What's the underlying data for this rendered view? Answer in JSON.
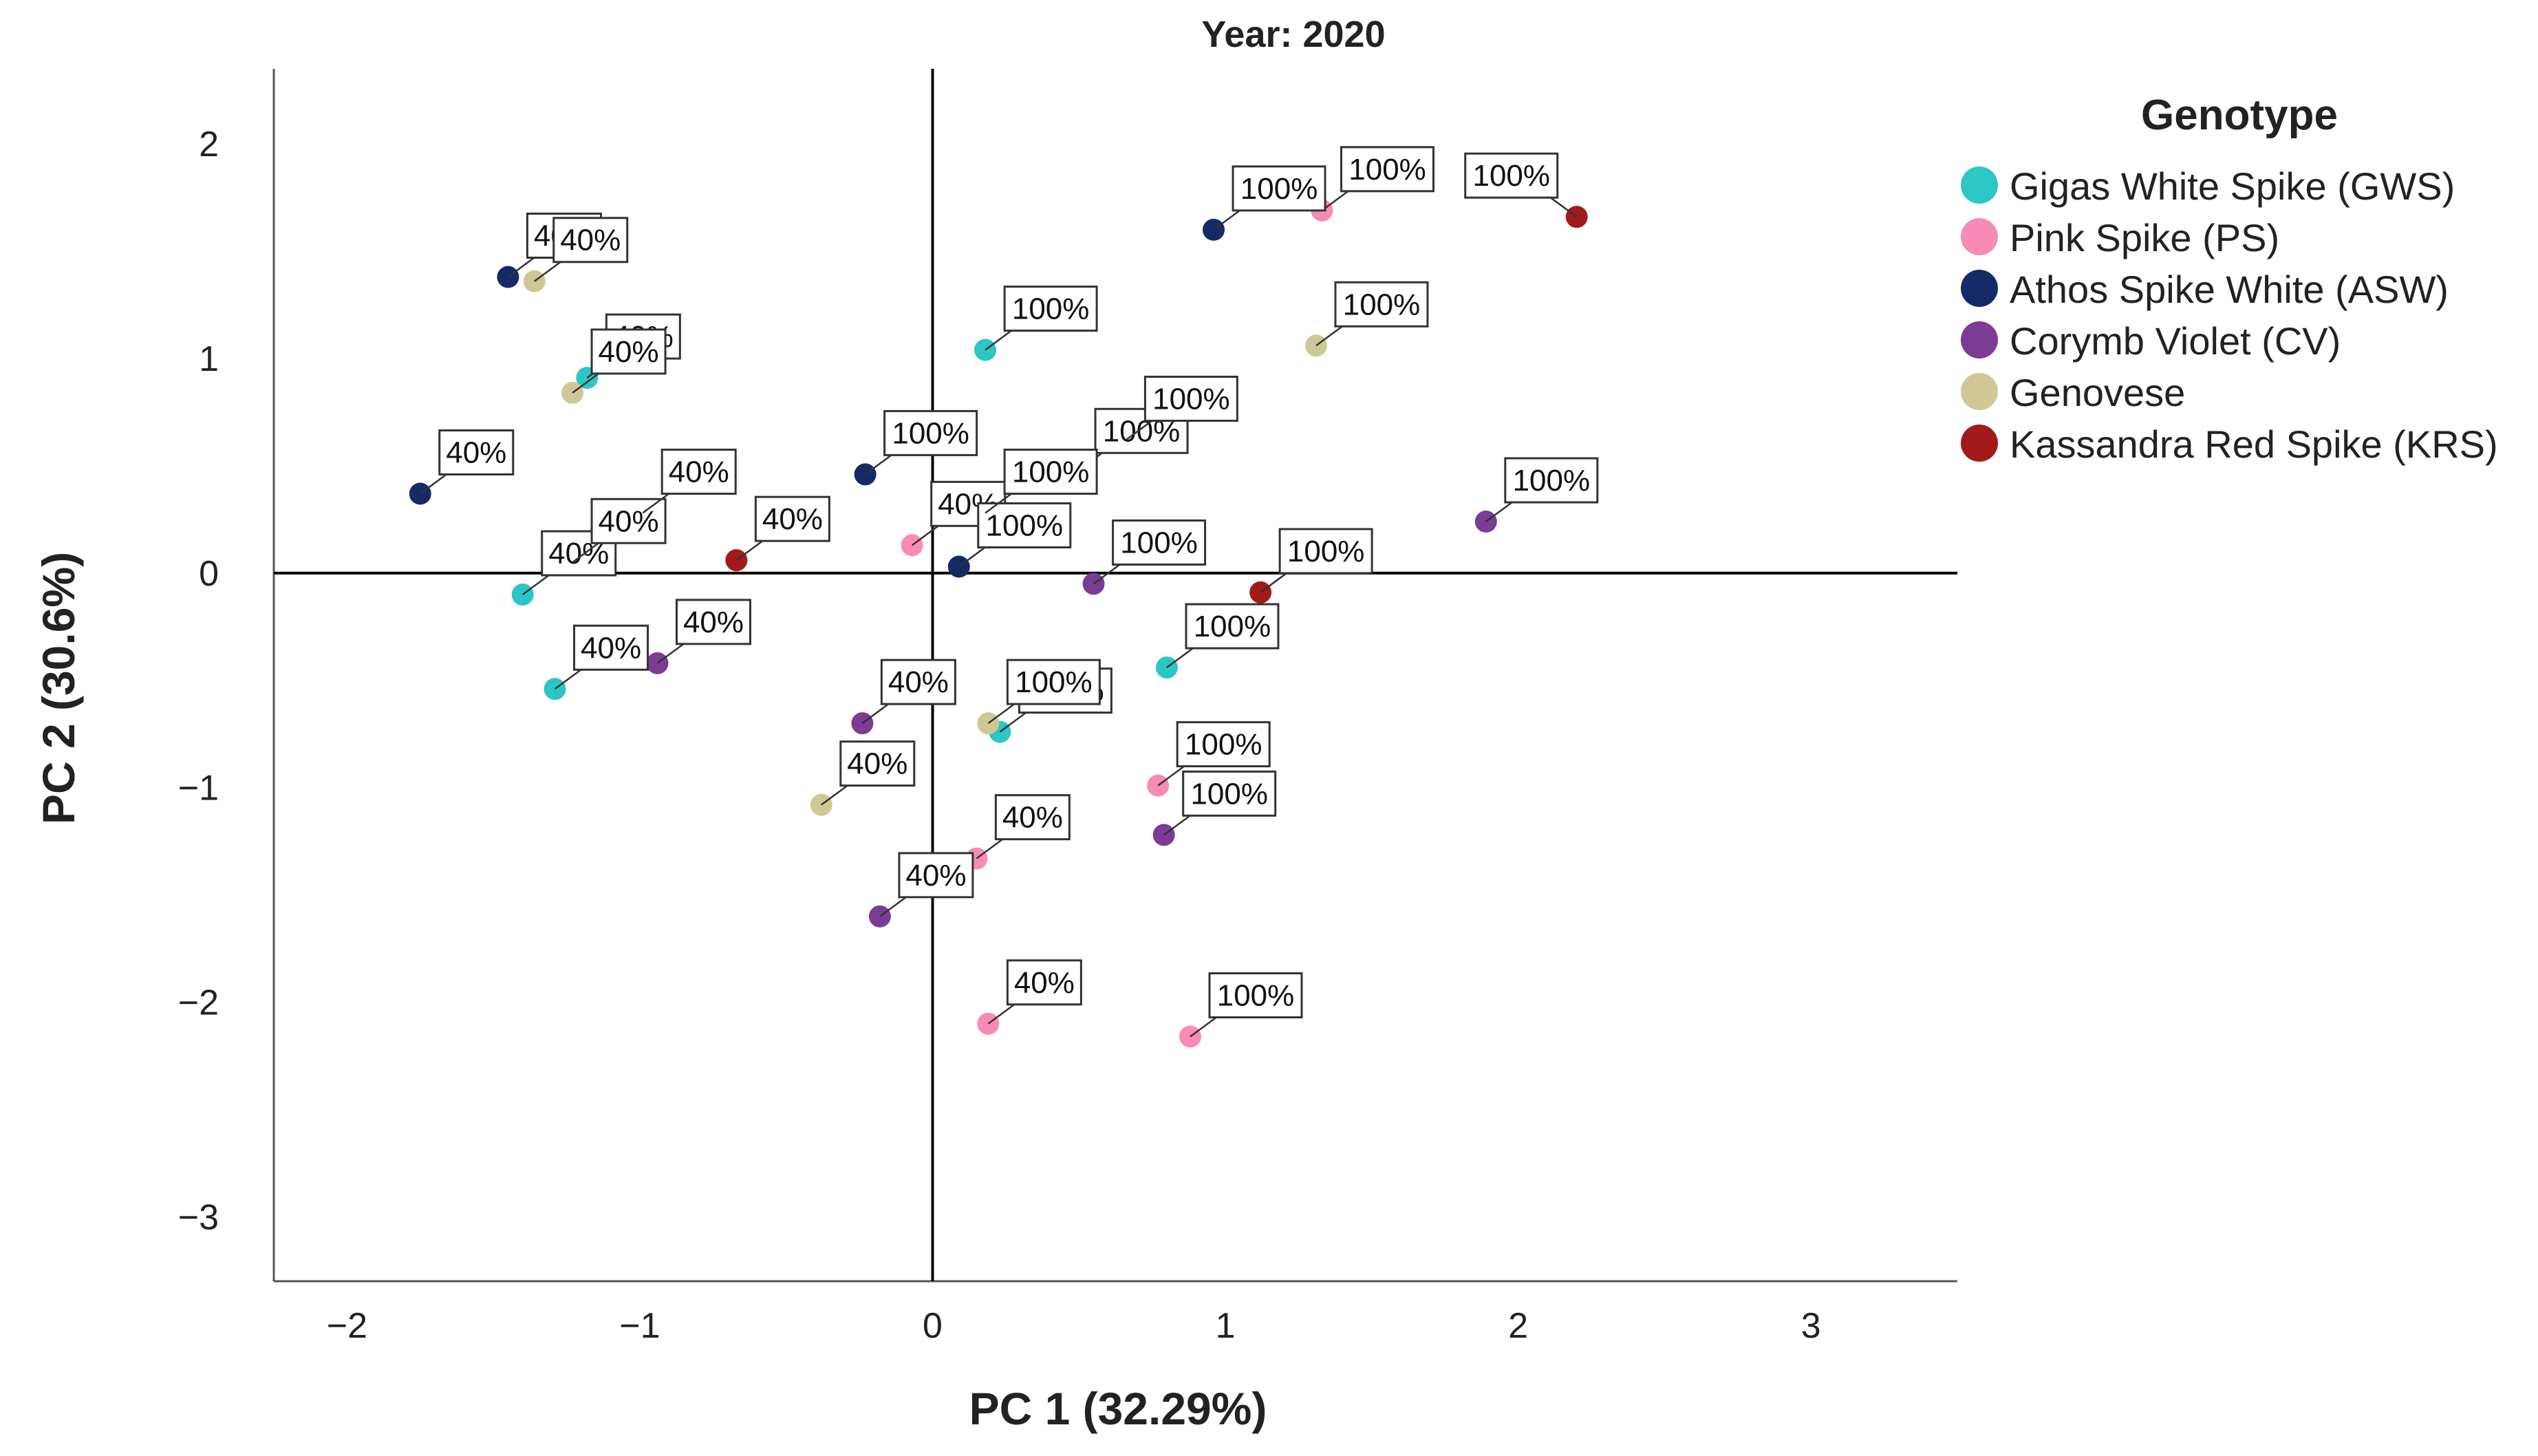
{
  "chart_data": {
    "type": "scatter",
    "title": "Year: 2020",
    "xlabel": "PC 1 (32.29%)",
    "ylabel": "PC 2 (30.6%)",
    "xlim": [
      -2.25,
      3.5
    ],
    "ylim": [
      -3.3,
      2.35
    ],
    "xticks": [
      -2,
      -1,
      0,
      1,
      2,
      3
    ],
    "yticks": [
      2,
      1,
      0,
      -1,
      -2,
      -3
    ],
    "x_tick_labels": [
      "−2",
      "−1",
      "0",
      "1",
      "2",
      "3"
    ],
    "y_tick_labels": [
      "2",
      "1",
      "0",
      "−1",
      "−2",
      "−3"
    ],
    "grid": false,
    "reference_lines": {
      "x": 0,
      "y": 0
    },
    "legend": {
      "title": "Genotype",
      "position": "right"
    },
    "series": [
      {
        "name": "Gigas White Spike (GWS)",
        "color": "#2cc6c4",
        "points": [
          {
            "x": -1.18,
            "y": 0.91,
            "label": "40%"
          },
          {
            "x": -1.4,
            "y": -0.1,
            "label": "40%"
          },
          {
            "x": -1.29,
            "y": -0.54,
            "label": "40%"
          },
          {
            "x": 0.18,
            "y": 1.04,
            "label": "100%"
          },
          {
            "x": 0.8,
            "y": -0.44,
            "label": "100%"
          },
          {
            "x": 0.23,
            "y": -0.74,
            "label": "100%"
          }
        ]
      },
      {
        "name": "Pink Spike (PS)",
        "color": "#f78bb6",
        "points": [
          {
            "x": -0.07,
            "y": 0.13,
            "label": "40%"
          },
          {
            "x": 0.15,
            "y": -1.33,
            "label": "40%"
          },
          {
            "x": 0.19,
            "y": -2.1,
            "label": "40%"
          },
          {
            "x": 1.33,
            "y": 1.69,
            "label": "100%"
          },
          {
            "x": 0.77,
            "y": -0.99,
            "label": "100%"
          },
          {
            "x": 0.88,
            "y": -2.16,
            "label": "100%"
          }
        ]
      },
      {
        "name": "Athos Spike White (ASW)",
        "color": "#152a66",
        "points": [
          {
            "x": -1.45,
            "y": 1.38,
            "label": "40%"
          },
          {
            "x": -1.75,
            "y": 0.37,
            "label": "40%"
          },
          {
            "x": -1.23,
            "y": 0.05,
            "label": "40%"
          },
          {
            "x": 0.96,
            "y": 1.6,
            "label": "100%"
          },
          {
            "x": -0.23,
            "y": 0.46,
            "label": "100%"
          },
          {
            "x": 0.09,
            "y": 0.03,
            "label": "100%"
          }
        ]
      },
      {
        "name": "Corymb Violet (CV)",
        "color": "#7b3c94",
        "points": [
          {
            "x": -0.94,
            "y": -0.42,
            "label": "40%"
          },
          {
            "x": -0.24,
            "y": -0.7,
            "label": "40%"
          },
          {
            "x": -0.18,
            "y": -1.6,
            "label": "40%"
          },
          {
            "x": 0.55,
            "y": -0.05,
            "label": "100%"
          },
          {
            "x": 1.89,
            "y": 0.24,
            "label": "100%"
          },
          {
            "x": 0.79,
            "y": -1.22,
            "label": "100%"
          }
        ]
      },
      {
        "name": "Genovese",
        "color": "#cfc896",
        "points": [
          {
            "x": -1.36,
            "y": 1.36,
            "label": "40%"
          },
          {
            "x": -1.23,
            "y": 0.84,
            "label": "40%"
          },
          {
            "x": -0.38,
            "y": -1.08,
            "label": "40%"
          },
          {
            "x": 1.31,
            "y": 1.06,
            "label": "100%"
          },
          {
            "x": 0.49,
            "y": 0.47,
            "label": "100%"
          },
          {
            "x": 0.19,
            "y": -0.7,
            "label": "100%"
          }
        ]
      },
      {
        "name": "Kassandra Red Spike (KRS)",
        "color": "#a31a1a",
        "points": [
          {
            "x": -0.99,
            "y": 0.28,
            "label": "40%"
          },
          {
            "x": -0.67,
            "y": 0.06,
            "label": "40%"
          },
          {
            "x": 2.2,
            "y": 1.66,
            "label": "100%"
          },
          {
            "x": 0.66,
            "y": 0.62,
            "label": "100%"
          },
          {
            "x": 0.18,
            "y": 0.28,
            "label": "100%"
          },
          {
            "x": 1.12,
            "y": -0.09,
            "label": "100%"
          }
        ]
      }
    ]
  }
}
